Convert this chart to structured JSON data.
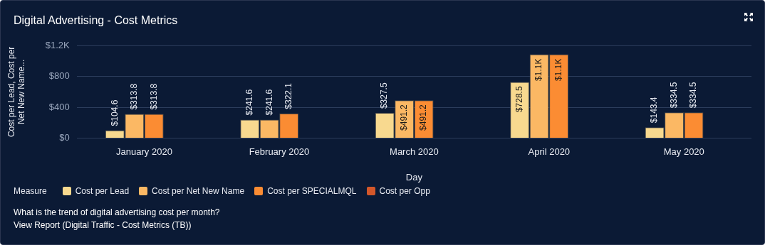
{
  "chart_data": {
    "type": "bar",
    "title": "Digital Advertising - Cost Metrics",
    "xlabel": "Day",
    "ylabel": "Cost per Lead, Cost per Net New Name...",
    "legend_title": "Measure",
    "categories": [
      "January 2020",
      "February 2020",
      "March 2020",
      "April 2020",
      "May 2020"
    ],
    "series": [
      {
        "name": "Cost per Lead",
        "color": "#f8d98f",
        "values": [
          104.6,
          241.6,
          327.5,
          728.5,
          143.4
        ],
        "value_labels": [
          "$104.6",
          "$241.6",
          "$327.5",
          "$728.5",
          "$143.4"
        ]
      },
      {
        "name": "Cost per Net New Name",
        "color": "#fbb864",
        "values": [
          313.8,
          241.6,
          491.2,
          1085,
          334.5
        ],
        "value_labels": [
          "$313.8",
          "$241.6",
          "$491.2",
          "$1.1K",
          "$334.5"
        ]
      },
      {
        "name": "Cost per  SPECIALMQL",
        "color": "#fb8c33",
        "values": [
          313.8,
          322.1,
          491.2,
          1085,
          334.5
        ],
        "value_labels": [
          "$313.8",
          "$322.1",
          "$491.2",
          "$1.1K",
          "$334.5"
        ]
      },
      {
        "name": "Cost per Opp",
        "color": "#d4572a",
        "values": [
          null,
          null,
          null,
          null,
          null
        ]
      }
    ],
    "ylim": [
      0,
      1200
    ],
    "yticks": [
      {
        "value": 0,
        "label": "$0"
      },
      {
        "value": 400,
        "label": "$400"
      },
      {
        "value": 800,
        "label": "$800"
      },
      {
        "value": 1200,
        "label": "$1.2K"
      }
    ],
    "grid": "y",
    "legend": "bottom left",
    "annotations": [
      "What is the trend of digital advertising cost per month?",
      "View Report (Digital Traffic - Cost Metrics (TB))"
    ]
  }
}
